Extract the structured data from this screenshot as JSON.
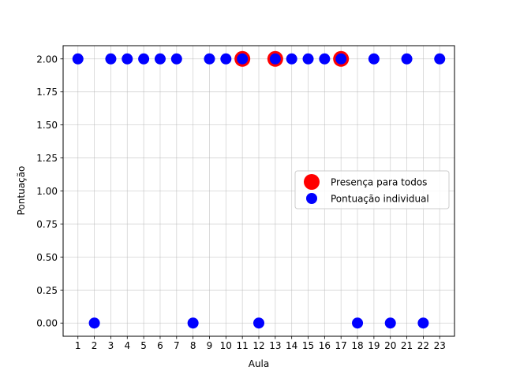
{
  "chart_data": {
    "type": "scatter",
    "xlabel": "Aula",
    "ylabel": "Pontuação",
    "x_ticks": [
      "1",
      "2",
      "3",
      "4",
      "5",
      "6",
      "7",
      "8",
      "9",
      "10",
      "11",
      "12",
      "13",
      "14",
      "15",
      "16",
      "17",
      "18",
      "19",
      "20",
      "21",
      "22",
      "23"
    ],
    "y_ticks": [
      "0.00",
      "0.25",
      "0.50",
      "0.75",
      "1.00",
      "1.25",
      "1.50",
      "1.75",
      "2.00"
    ],
    "xlim": [
      0.1,
      23.9
    ],
    "ylim": [
      -0.1,
      2.1
    ],
    "grid": true,
    "legend_position": "center-right",
    "series": [
      {
        "name": "Presença para todos",
        "color": "#ff0000",
        "marker": "large-circle",
        "points": [
          {
            "x": 11,
            "y": 2.0
          },
          {
            "x": 13,
            "y": 2.0
          },
          {
            "x": 17,
            "y": 2.0
          }
        ]
      },
      {
        "name": "Pontuação individual",
        "color": "#0000ff",
        "marker": "circle",
        "points": [
          {
            "x": 1,
            "y": 2.0
          },
          {
            "x": 2,
            "y": 0.0
          },
          {
            "x": 3,
            "y": 2.0
          },
          {
            "x": 4,
            "y": 2.0
          },
          {
            "x": 5,
            "y": 2.0
          },
          {
            "x": 6,
            "y": 2.0
          },
          {
            "x": 7,
            "y": 2.0
          },
          {
            "x": 8,
            "y": 0.0
          },
          {
            "x": 9,
            "y": 2.0
          },
          {
            "x": 10,
            "y": 2.0
          },
          {
            "x": 11,
            "y": 2.0
          },
          {
            "x": 12,
            "y": 0.0
          },
          {
            "x": 13,
            "y": 2.0
          },
          {
            "x": 14,
            "y": 2.0
          },
          {
            "x": 15,
            "y": 2.0
          },
          {
            "x": 16,
            "y": 2.0
          },
          {
            "x": 17,
            "y": 2.0
          },
          {
            "x": 18,
            "y": 0.0
          },
          {
            "x": 19,
            "y": 2.0
          },
          {
            "x": 20,
            "y": 0.0
          },
          {
            "x": 21,
            "y": 2.0
          },
          {
            "x": 22,
            "y": 0.0
          },
          {
            "x": 23,
            "y": 2.0
          }
        ]
      }
    ]
  }
}
